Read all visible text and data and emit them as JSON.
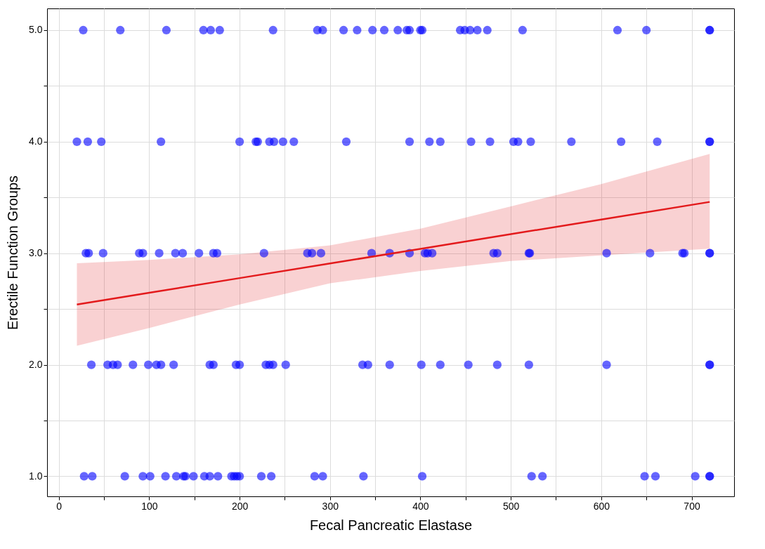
{
  "chart_data": {
    "type": "scatter",
    "xlabel": "Fecal Pancreatic Elastase",
    "ylabel": "Erectile Function Groups",
    "xlim": [
      -13,
      747
    ],
    "ylim": [
      0.82,
      5.195
    ],
    "xticks": [
      0,
      {
        "value": 50,
        "label": null
      },
      100,
      {
        "value": 150,
        "label": null
      },
      200,
      {
        "value": 250,
        "label": null
      },
      300,
      {
        "value": 350,
        "label": null
      },
      400,
      {
        "value": 450,
        "label": null
      },
      500,
      {
        "value": 550,
        "label": null
      },
      600,
      {
        "value": 650,
        "label": null
      },
      700
    ],
    "yticks": [
      {
        "value": 1,
        "label": "1.0"
      },
      {
        "value": 1.5,
        "label": null
      },
      {
        "value": 2,
        "label": "2.0"
      },
      {
        "value": 2.5,
        "label": null
      },
      {
        "value": 3,
        "label": "3.0"
      },
      {
        "value": 3.5,
        "label": null
      },
      {
        "value": 4,
        "label": "4.0"
      },
      {
        "value": 4.5,
        "label": null
      },
      {
        "value": 5,
        "label": "5.0"
      }
    ],
    "grid": true,
    "series": [
      {
        "marker": "circle",
        "color": "#0000ff",
        "x": [
          27,
          68,
          119,
          160,
          168,
          178,
          237,
          286,
          292,
          315,
          330,
          347,
          360,
          375,
          385,
          388,
          400,
          402,
          444,
          449,
          455,
          463,
          474,
          513,
          618,
          650,
          720,
          720,
          20,
          32,
          47,
          113,
          200,
          218,
          220,
          233,
          238,
          248,
          260,
          318,
          388,
          410,
          422,
          456,
          477,
          503,
          508,
          522,
          567,
          622,
          662,
          720,
          720,
          30,
          33,
          49,
          89,
          93,
          111,
          129,
          137,
          155,
          171,
          175,
          227,
          275,
          280,
          290,
          346,
          366,
          388,
          405,
          408,
          413,
          481,
          485,
          520,
          521,
          606,
          654,
          690,
          692,
          720,
          720,
          36,
          54,
          60,
          65,
          82,
          99,
          108,
          113,
          127,
          167,
          171,
          196,
          200,
          229,
          233,
          237,
          251,
          336,
          342,
          366,
          401,
          422,
          453,
          485,
          520,
          606,
          720,
          720,
          28,
          37,
          73,
          93,
          101,
          118,
          130,
          138,
          140,
          149,
          161,
          167,
          176,
          191,
          194,
          197,
          200,
          224,
          235,
          283,
          292,
          337,
          402,
          523,
          535,
          648,
          660,
          704,
          720,
          720
        ],
        "values": [
          5,
          5,
          5,
          5,
          5,
          5,
          5,
          5,
          5,
          5,
          5,
          5,
          5,
          5,
          5,
          5,
          5,
          5,
          5,
          5,
          5,
          5,
          5,
          5,
          5,
          5,
          5,
          5,
          4,
          4,
          4,
          4,
          4,
          4,
          4,
          4,
          4,
          4,
          4,
          4,
          4,
          4,
          4,
          4,
          4,
          4,
          4,
          4,
          4,
          4,
          4,
          4,
          4,
          3,
          3,
          3,
          3,
          3,
          3,
          3,
          3,
          3,
          3,
          3,
          3,
          3,
          3,
          3,
          3,
          3,
          3,
          3,
          3,
          3,
          3,
          3,
          3,
          3,
          3,
          3,
          3,
          3,
          3,
          3,
          2,
          2,
          2,
          2,
          2,
          2,
          2,
          2,
          2,
          2,
          2,
          2,
          2,
          2,
          2,
          2,
          2,
          2,
          2,
          2,
          2,
          2,
          2,
          2,
          2,
          2,
          2,
          2,
          1,
          1,
          1,
          1,
          1,
          1,
          1,
          1,
          1,
          1,
          1,
          1,
          1,
          1,
          1,
          1,
          1,
          1,
          1,
          1,
          1,
          1,
          1,
          1,
          1,
          1,
          1,
          1,
          1,
          1
        ]
      },
      {
        "type": "line",
        "color": "#e31a1c",
        "x": [
          20,
          100,
          200,
          300,
          400,
          500,
          600,
          720
        ],
        "values": [
          2.54,
          2.645,
          2.777,
          2.908,
          3.039,
          3.171,
          3.302,
          3.46
        ],
        "lower": [
          2.17,
          2.33,
          2.54,
          2.73,
          2.84,
          2.93,
          2.98,
          3.04
        ],
        "upper": [
          2.91,
          2.94,
          2.99,
          3.07,
          3.22,
          3.42,
          3.62,
          3.89
        ]
      }
    ]
  }
}
